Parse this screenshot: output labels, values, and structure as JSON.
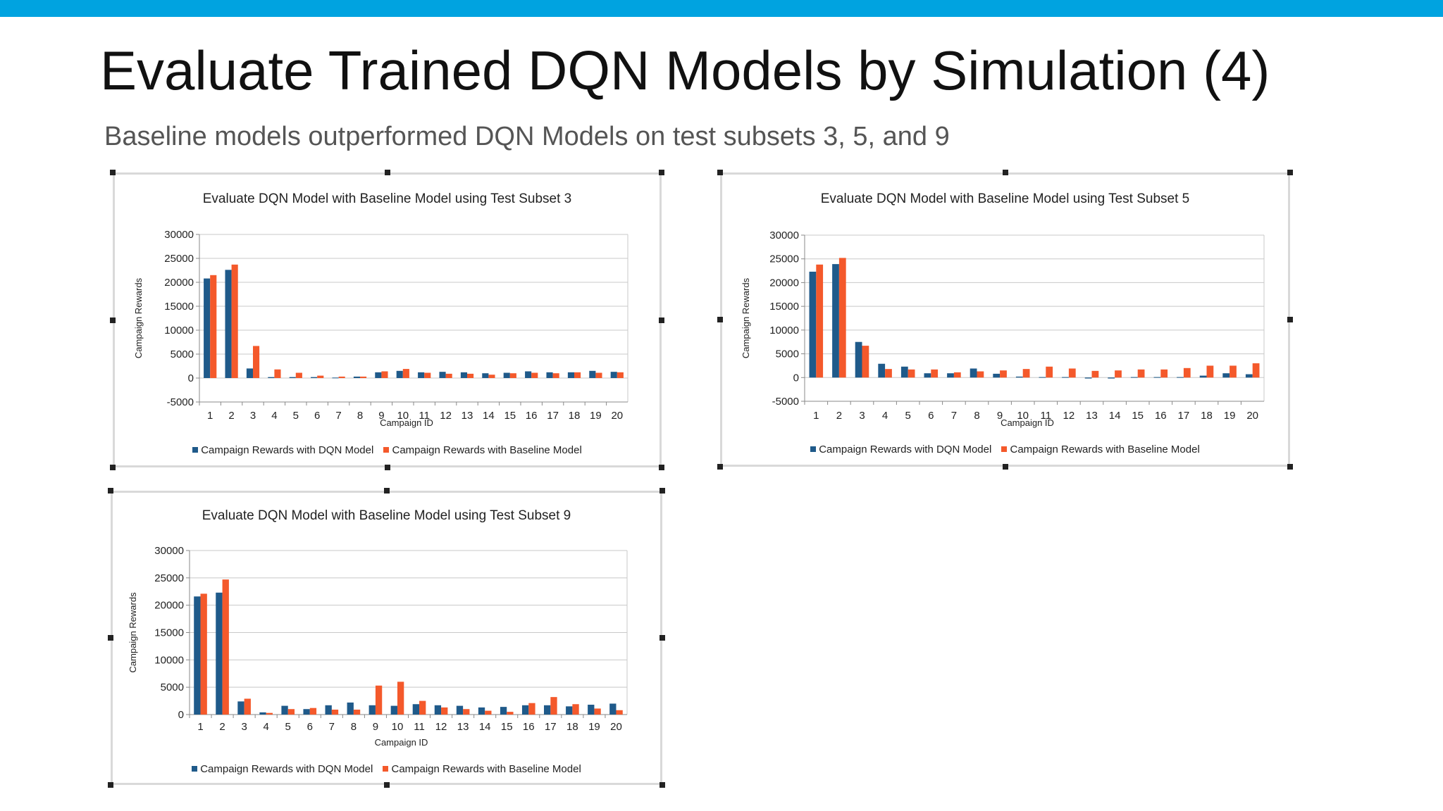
{
  "slide": {
    "title": "Evaluate Trained DQN Models by Simulation (4)",
    "subtitle": "Baseline models outperformed DQN Models on test subsets 3, 5, and 9",
    "accent_color": "#00a3e0"
  },
  "colors": {
    "dqn": "#1f5a8a",
    "baseline": "#f4592b"
  },
  "chart_data": [
    {
      "type": "bar",
      "title": "Evaluate DQN Model with Baseline Model using Test Subset 3",
      "xlabel": "Campaign ID",
      "ylabel": "Campaign Rewards",
      "ylim": [
        -5000,
        30000
      ],
      "yticks": [
        30000,
        25000,
        20000,
        15000,
        10000,
        5000,
        0,
        -5000
      ],
      "grid": true,
      "legend_position": "bottom",
      "categories": [
        "1",
        "2",
        "3",
        "4",
        "5",
        "6",
        "7",
        "8",
        "9",
        "10",
        "11",
        "12",
        "13",
        "14",
        "15",
        "16",
        "17",
        "18",
        "19",
        "20"
      ],
      "series": [
        {
          "name": "Campaign Rewards with DQN Model",
          "values": [
            20800,
            22600,
            2000,
            200,
            200,
            200,
            100,
            300,
            1200,
            1500,
            1200,
            1300,
            1200,
            1000,
            1100,
            1400,
            1200,
            1200,
            1500,
            1300
          ]
        },
        {
          "name": "Campaign Rewards with Baseline Model",
          "values": [
            21500,
            23700,
            6700,
            1800,
            1100,
            500,
            300,
            300,
            1400,
            1900,
            1100,
            900,
            900,
            700,
            1000,
            1100,
            1000,
            1200,
            1100,
            1200
          ]
        }
      ]
    },
    {
      "type": "bar",
      "title": "Evaluate DQN Model with Baseline Model using Test Subset 5",
      "xlabel": "Campaign ID",
      "ylabel": "Campaign Rewards",
      "ylim": [
        -5000,
        30000
      ],
      "yticks": [
        30000,
        25000,
        20000,
        15000,
        10000,
        5000,
        0,
        -5000
      ],
      "grid": true,
      "legend_position": "bottom",
      "categories": [
        "1",
        "2",
        "3",
        "4",
        "5",
        "6",
        "7",
        "8",
        "9",
        "10",
        "11",
        "12",
        "13",
        "14",
        "15",
        "16",
        "17",
        "18",
        "19",
        "20"
      ],
      "series": [
        {
          "name": "Campaign Rewards with DQN Model",
          "values": [
            22300,
            23900,
            7500,
            2900,
            2300,
            900,
            900,
            1900,
            800,
            200,
            100,
            100,
            -200,
            -200,
            100,
            100,
            100,
            400,
            900,
            700
          ]
        },
        {
          "name": "Campaign Rewards with Baseline Model",
          "values": [
            23800,
            25200,
            6700,
            1800,
            1700,
            1700,
            1100,
            1300,
            1500,
            1800,
            2300,
            1900,
            1400,
            1500,
            1700,
            1700,
            2000,
            2500,
            2500,
            3000
          ]
        }
      ]
    },
    {
      "type": "bar",
      "title": "Evaluate DQN Model with Baseline Model using Test Subset 9",
      "xlabel": "Campaign ID",
      "ylabel": "Campaign Rewards",
      "ylim": [
        0,
        30000
      ],
      "yticks": [
        30000,
        25000,
        20000,
        15000,
        10000,
        5000,
        0
      ],
      "grid": true,
      "legend_position": "bottom",
      "categories": [
        "1",
        "2",
        "3",
        "4",
        "5",
        "6",
        "7",
        "8",
        "9",
        "10",
        "11",
        "12",
        "13",
        "14",
        "15",
        "16",
        "17",
        "18",
        "19",
        "20"
      ],
      "series": [
        {
          "name": "Campaign Rewards with DQN Model",
          "values": [
            21600,
            22300,
            2400,
            400,
            1600,
            1000,
            1700,
            2200,
            1700,
            1600,
            1900,
            1700,
            1600,
            1300,
            1400,
            1700,
            1700,
            1500,
            1800,
            2000
          ]
        },
        {
          "name": "Campaign Rewards with Baseline Model",
          "values": [
            22100,
            24700,
            2900,
            300,
            1000,
            1200,
            900,
            900,
            5300,
            6000,
            2500,
            1300,
            1000,
            700,
            500,
            2100,
            3200,
            1900,
            1100,
            800
          ]
        }
      ]
    }
  ]
}
